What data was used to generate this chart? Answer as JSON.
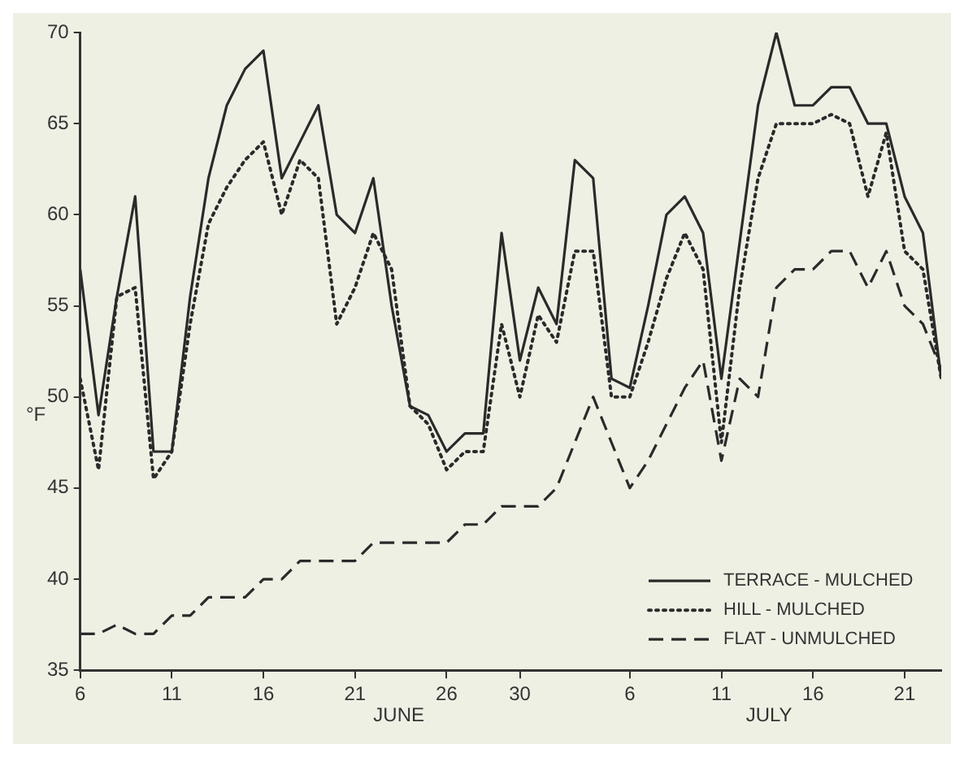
{
  "chart_data": {
    "type": "line",
    "ylabel": "°F",
    "x": [
      "--06-06",
      "--06-07",
      "--06-08",
      "--06-09",
      "--06-10",
      "--06-11",
      "--06-12",
      "--06-13",
      "--06-14",
      "--06-15",
      "--06-16",
      "--06-17",
      "--06-18",
      "--06-19",
      "--06-20",
      "--06-21",
      "--06-22",
      "--06-23",
      "--06-24",
      "--06-25",
      "--06-26",
      "--06-27",
      "--06-28",
      "--06-29",
      "--06-30",
      "--07-01",
      "--07-02",
      "--07-03",
      "--07-04",
      "--07-05",
      "--07-06",
      "--07-07",
      "--07-08",
      "--07-09",
      "--07-10",
      "--07-11",
      "--07-12",
      "--07-13",
      "--07-14",
      "--07-15",
      "--07-16",
      "--07-17",
      "--07-18",
      "--07-19",
      "--07-20",
      "--07-21",
      "--07-22",
      "--07-23"
    ],
    "series": [
      {
        "name": "TERRACE - MULCHED",
        "color": "#2a2a2a",
        "line_style": "solid",
        "values": [
          57,
          49,
          55.5,
          61,
          47,
          47,
          55.5,
          62,
          66,
          68,
          69,
          62,
          64,
          66,
          60,
          59,
          62,
          55,
          49.5,
          49,
          47,
          48,
          48,
          59,
          52,
          56,
          54,
          63,
          62,
          51,
          50.5,
          55,
          60,
          61,
          59,
          51,
          58.5,
          66,
          70,
          66,
          66,
          67,
          67,
          65,
          65,
          61,
          59,
          51
        ]
      },
      {
        "name": "HILL - MULCHED",
        "color": "#2a2a2a",
        "line_style": "dotted",
        "values": [
          51,
          46,
          55.5,
          56,
          45.5,
          47,
          54,
          59.5,
          61.5,
          63,
          64,
          60,
          63,
          62,
          54,
          56,
          59,
          57,
          49.5,
          48.5,
          46,
          47,
          47,
          54,
          50,
          54.5,
          53,
          58,
          58,
          50,
          50,
          53,
          56.5,
          59,
          57,
          47.5,
          56,
          62,
          65,
          65,
          65,
          65.5,
          65,
          61,
          64.5,
          58,
          57,
          51
        ]
      },
      {
        "name": "FLAT - UNMULCHED",
        "color": "#2a2a2a",
        "line_style": "dashed",
        "values": [
          37,
          37,
          37.5,
          37,
          37,
          38,
          38,
          39,
          39,
          39,
          40,
          40,
          41,
          41,
          41,
          41,
          42,
          42,
          42,
          42,
          42,
          43,
          43,
          44,
          44,
          44,
          45,
          47.5,
          50,
          47.5,
          45,
          46.5,
          48.5,
          50.5,
          52,
          46.5,
          51,
          50,
          56,
          57,
          57,
          58,
          58,
          56,
          58,
          55,
          54,
          51.5
        ]
      }
    ],
    "xlim": [
      "--06-06",
      "--07-23"
    ],
    "xticks": [
      {
        "value": "--06-06",
        "label": "6"
      },
      {
        "value": "--06-11",
        "label": "11"
      },
      {
        "value": "--06-16",
        "label": "16"
      },
      {
        "value": "--06-21",
        "label": "21"
      },
      {
        "value": "--06-26",
        "label": "26"
      },
      {
        "value": "--06-30",
        "label": "30"
      },
      {
        "value": "--07-06",
        "label": "6"
      },
      {
        "value": "--07-11",
        "label": "11"
      },
      {
        "value": "--07-16",
        "label": "16"
      },
      {
        "value": "--07-21",
        "label": "21"
      }
    ],
    "ylim": [
      35,
      70
    ],
    "yticks": [
      35,
      40,
      45,
      50,
      55,
      60,
      65,
      70
    ],
    "annotations": [
      "JUNE",
      "JULY"
    ],
    "grid": false,
    "legend": "bottom right"
  }
}
